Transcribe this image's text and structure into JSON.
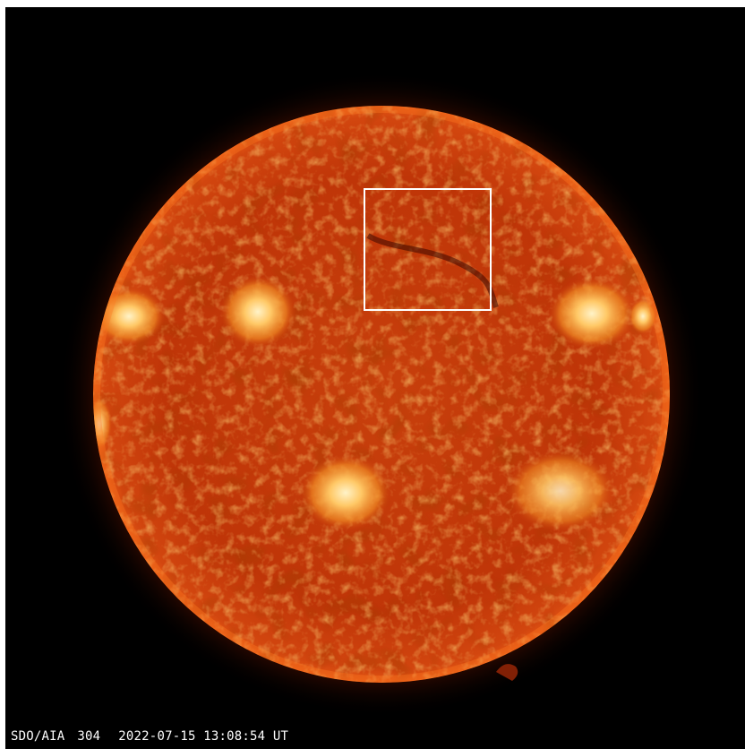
{
  "image": {
    "instrument": "SDO/AIA",
    "wavelength": "304",
    "timestamp": "2022-07-15 13:08:54 UT"
  },
  "colors": {
    "background": "#000000",
    "disk_core": "#c63a08",
    "disk_limb": "#8a1d02",
    "active_region": "#ffd27a",
    "corona": "#7a1a00",
    "roi_box": "#ffffff",
    "caption": "#ffffff"
  }
}
